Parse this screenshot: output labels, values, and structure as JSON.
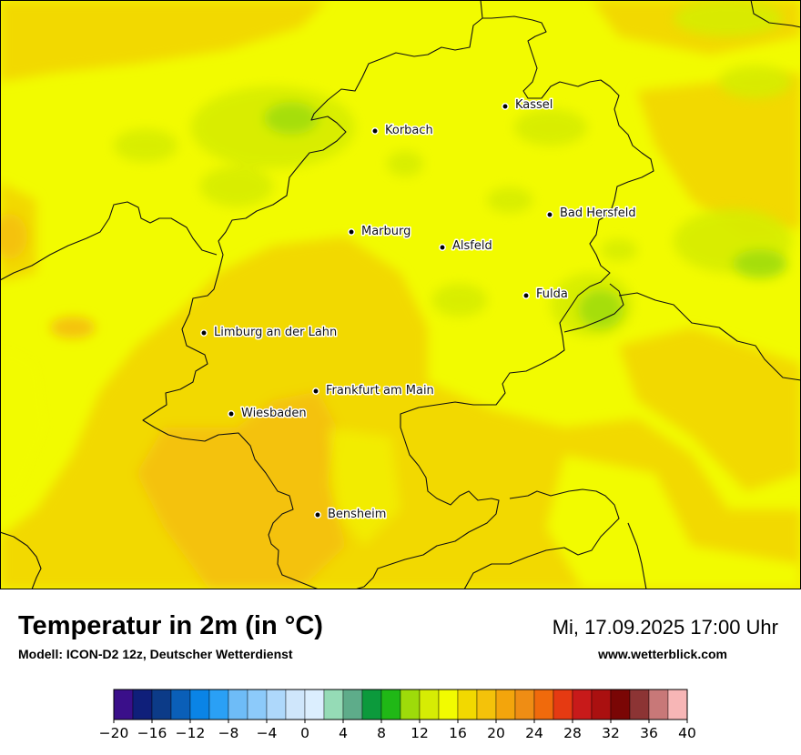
{
  "header": {
    "title": "Temperatur in 2m (in °C)",
    "model": "Modell: ICON-D2 12z, Deutscher Wetterdienst",
    "datetime": "Mi, 17.09.2025 17:00 Uhr",
    "website": "www.wetterblick.com"
  },
  "map": {
    "cities": [
      {
        "id": "kassel",
        "name": "Kassel"
      },
      {
        "id": "korbach",
        "name": "Korbach"
      },
      {
        "id": "bad-hersfeld",
        "name": "Bad Hersfeld"
      },
      {
        "id": "marburg",
        "name": "Marburg"
      },
      {
        "id": "alsfeld",
        "name": "Alsfeld"
      },
      {
        "id": "fulda",
        "name": "Fulda"
      },
      {
        "id": "limburg",
        "name": "Limburg an der Lahn"
      },
      {
        "id": "frankfurt",
        "name": "Frankfurt am Main"
      },
      {
        "id": "wiesbaden",
        "name": "Wiesbaden"
      },
      {
        "id": "bensheim",
        "name": "Bensheim"
      }
    ]
  },
  "legend": {
    "unit": "°C",
    "min": -20,
    "max": 40,
    "step": 2,
    "tick_labels": [
      "−20",
      "−16",
      "−12",
      "−8",
      "−4",
      "0",
      "4",
      "8",
      "12",
      "16",
      "20",
      "24",
      "28",
      "32",
      "36",
      "40"
    ],
    "colors": [
      "#3a0f8a",
      "#0f1f7a",
      "#0c3b88",
      "#0a5fb8",
      "#0a84e6",
      "#2aa0f5",
      "#6ebcf7",
      "#8ccafa",
      "#aed8fb",
      "#cfe6fb",
      "#dbeefe",
      "#95dbb6",
      "#5eac8a",
      "#0c9a3c",
      "#20b816",
      "#9edb0a",
      "#d6ec04",
      "#f2fb00",
      "#f2d900",
      "#f4c20a",
      "#f3a50c",
      "#ef8d14",
      "#f06a0c",
      "#e53a12",
      "#c81a1a",
      "#aa1010",
      "#7a0605",
      "#8c3434",
      "#c87878",
      "#f7b6b6",
      "#fde3e6"
    ]
  }
}
